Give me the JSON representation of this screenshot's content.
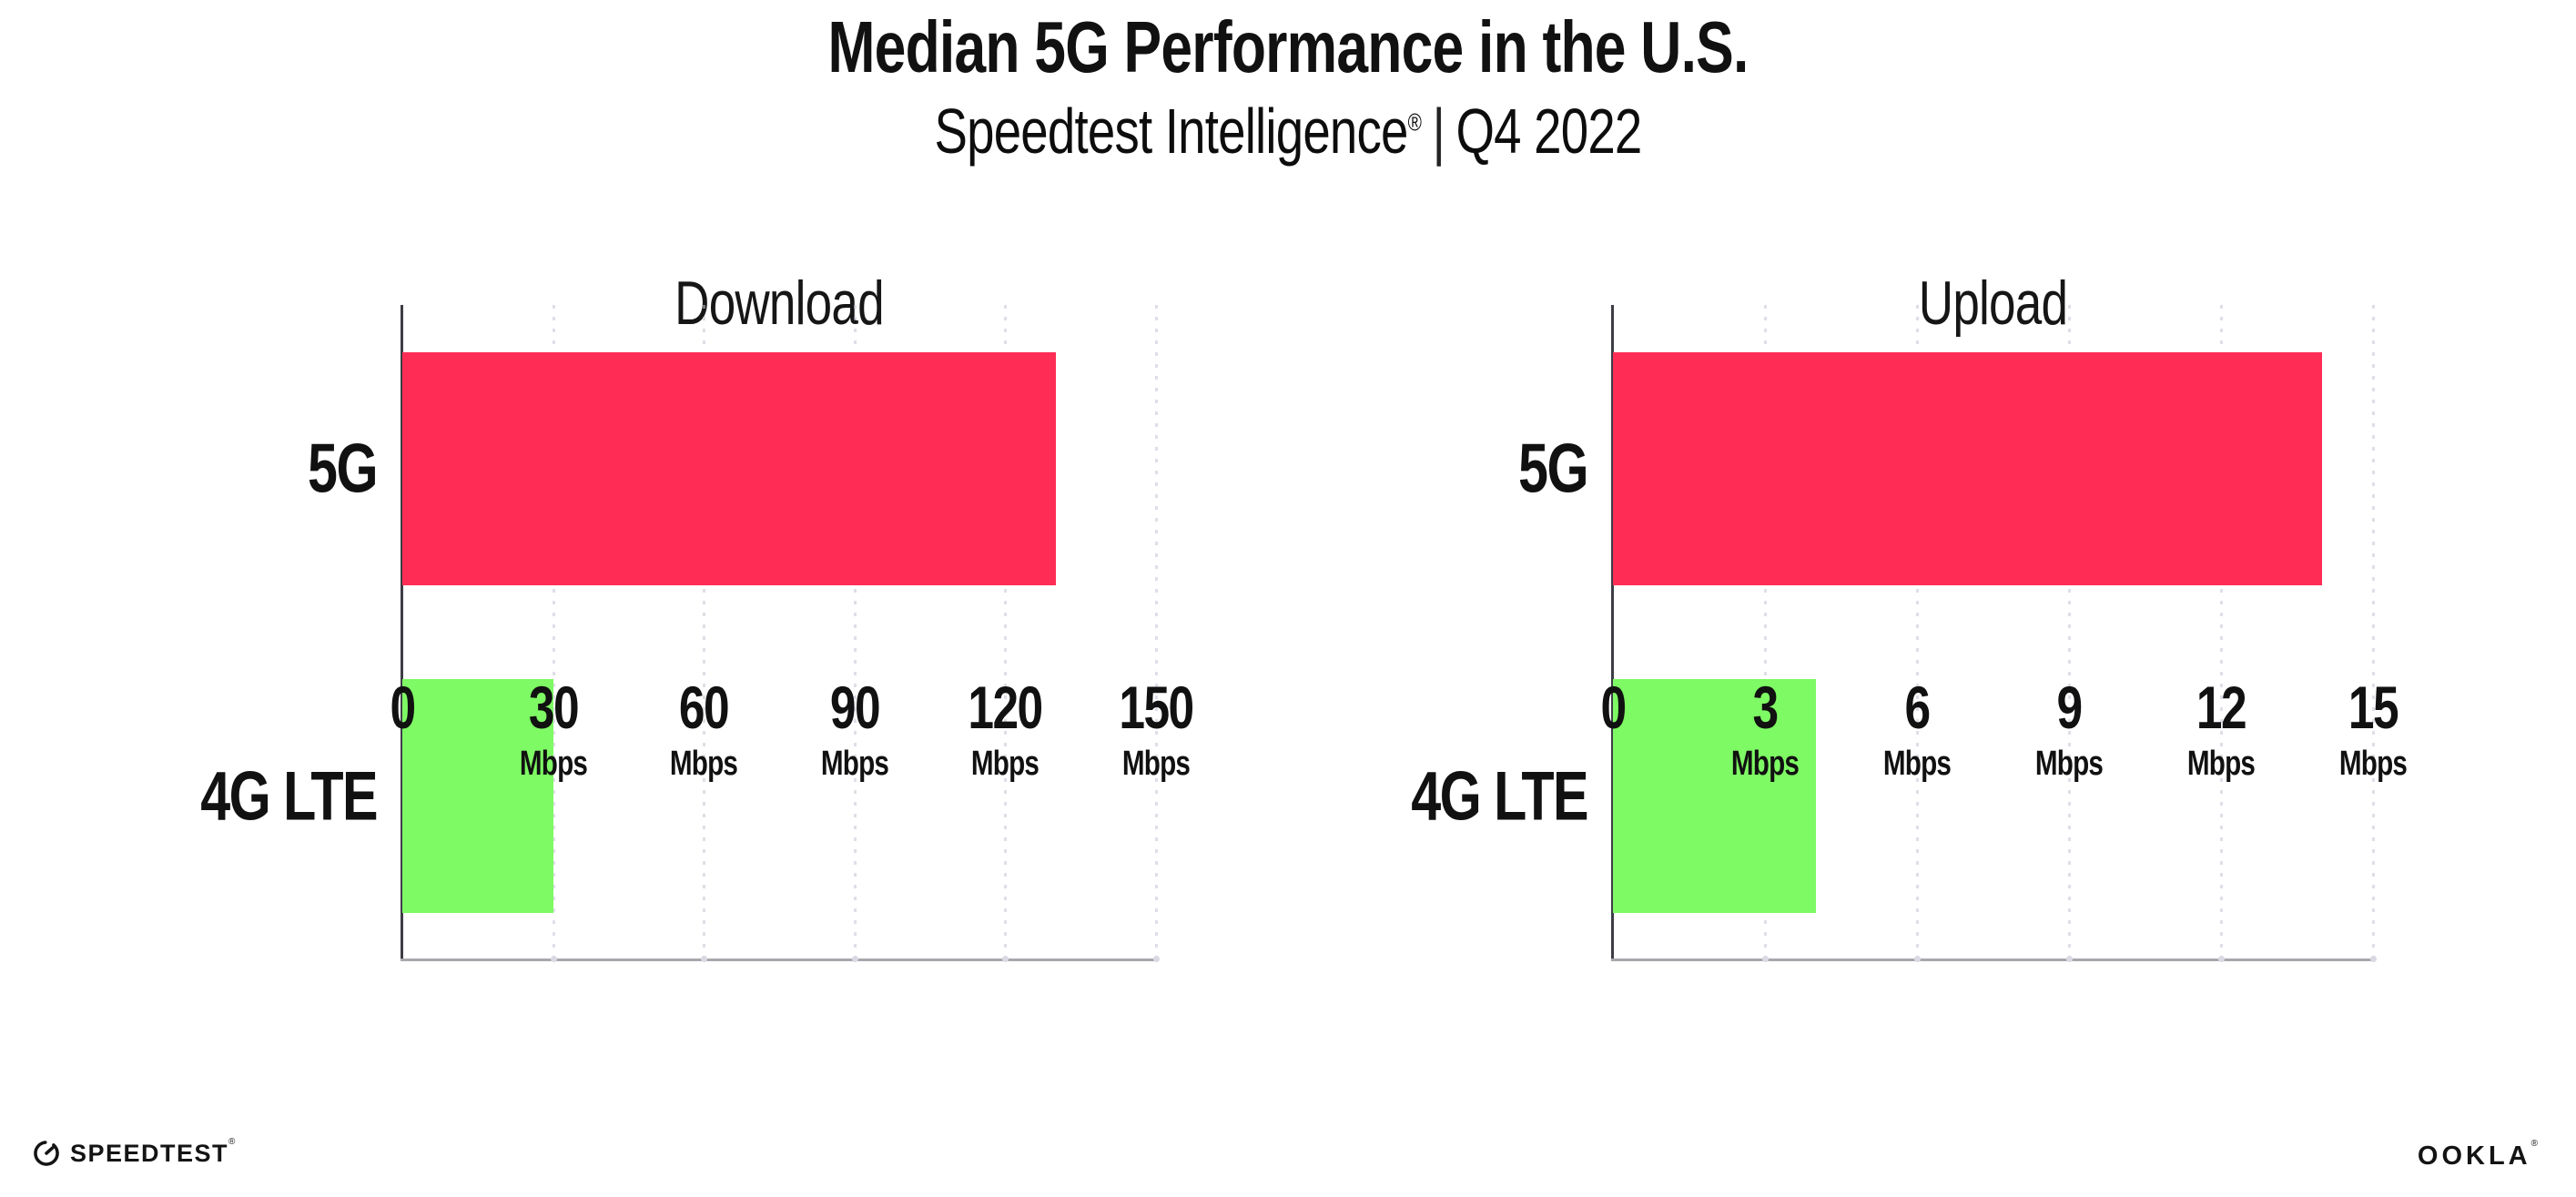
{
  "header": {
    "title": "Median 5G Performance in the U.S.",
    "subtitle_brand": "Speedtest Intelligence",
    "subtitle_reg": "®",
    "subtitle_separator": "|",
    "subtitle_period": "Q4 2022"
  },
  "footer": {
    "speedtest_logo_text": "SPEEDTEST",
    "speedtest_reg": "®",
    "ookla_logo_text": "OOKLA",
    "ookla_reg": "®"
  },
  "colors": {
    "bar_5g": "#FF2D55",
    "bar_4g_lte": "#7EFA64",
    "gridline": "#C4C4D6",
    "y_axis": "#3D3D46",
    "x_axis": "#A7A7AD",
    "text": "#111111"
  },
  "chart_data": [
    {
      "type": "bar",
      "orientation": "horizontal",
      "title": "Download",
      "categories": [
        "5G",
        "4G LTE"
      ],
      "values": [
        130,
        30
      ],
      "unit": "Mbps",
      "xlim": [
        0,
        150
      ],
      "xticks": [
        0,
        30,
        60,
        90,
        120,
        150
      ],
      "grid": "vertical-dotted",
      "bar_colors": [
        "#FF2D55",
        "#7EFA64"
      ]
    },
    {
      "type": "bar",
      "orientation": "horizontal",
      "title": "Upload",
      "categories": [
        "5G",
        "4G LTE"
      ],
      "values": [
        14,
        4
      ],
      "unit": "Mbps",
      "xlim": [
        0,
        15
      ],
      "xticks": [
        0,
        3,
        6,
        9,
        12,
        15
      ],
      "grid": "vertical-dotted",
      "bar_colors": [
        "#FF2D55",
        "#7EFA64"
      ]
    }
  ]
}
